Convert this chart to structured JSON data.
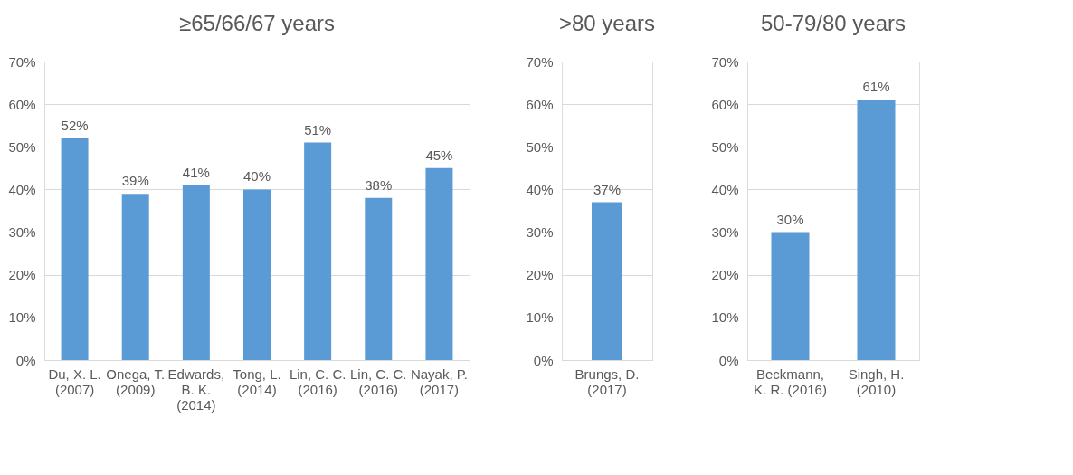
{
  "chart_data": [
    {
      "type": "bar",
      "title": "≥65/66/67 years",
      "categories": [
        "Du, X. L.\n(2007)",
        "Onega, T.\n(2009)",
        "Edwards,\nB. K.\n(2014)",
        "Tong, L.\n(2014)",
        "Lin, C. C.\n(2016)",
        "Lin, C. C.\n(2016)",
        "Nayak, P.\n(2017)"
      ],
      "values": [
        52,
        39,
        41,
        40,
        51,
        38,
        45
      ],
      "value_labels": [
        "52%",
        "39%",
        "41%",
        "40%",
        "51%",
        "38%",
        "45%"
      ],
      "color": "#5b9bd5",
      "ylim": [
        0,
        70
      ],
      "yticks": [
        {
          "value": 0,
          "label": "0%"
        },
        {
          "value": 10,
          "label": "10%"
        },
        {
          "value": 20,
          "label": "20%"
        },
        {
          "value": 30,
          "label": "30%"
        },
        {
          "value": 40,
          "label": "40%"
        },
        {
          "value": 50,
          "label": "50%"
        },
        {
          "value": 60,
          "label": "60%"
        },
        {
          "value": 70,
          "label": "70%"
        }
      ],
      "grid": "y"
    },
    {
      "type": "bar",
      "title": ">80 years",
      "categories": [
        "Brungs, D.\n(2017)"
      ],
      "values": [
        37
      ],
      "value_labels": [
        "37%"
      ],
      "color": "#5b9bd5",
      "ylim": [
        0,
        70
      ],
      "yticks": [
        {
          "value": 0,
          "label": "0%"
        },
        {
          "value": 10,
          "label": "10%"
        },
        {
          "value": 20,
          "label": "20%"
        },
        {
          "value": 30,
          "label": "30%"
        },
        {
          "value": 40,
          "label": "40%"
        },
        {
          "value": 50,
          "label": "50%"
        },
        {
          "value": 60,
          "label": "60%"
        },
        {
          "value": 70,
          "label": "70%"
        }
      ],
      "grid": "y"
    },
    {
      "type": "bar",
      "title": "50-79/80 years",
      "categories": [
        "Beckmann,\nK. R. (2016)",
        "Singh, H.\n(2010)"
      ],
      "values": [
        30,
        61
      ],
      "value_labels": [
        "30%",
        "61%"
      ],
      "color": "#5b9bd5",
      "ylim": [
        0,
        70
      ],
      "yticks": [
        {
          "value": 0,
          "label": "0%"
        },
        {
          "value": 10,
          "label": "10%"
        },
        {
          "value": 20,
          "label": "20%"
        },
        {
          "value": 30,
          "label": "30%"
        },
        {
          "value": 40,
          "label": "40%"
        },
        {
          "value": 50,
          "label": "50%"
        },
        {
          "value": 60,
          "label": "60%"
        },
        {
          "value": 70,
          "label": "70%"
        }
      ],
      "grid": "y"
    }
  ]
}
